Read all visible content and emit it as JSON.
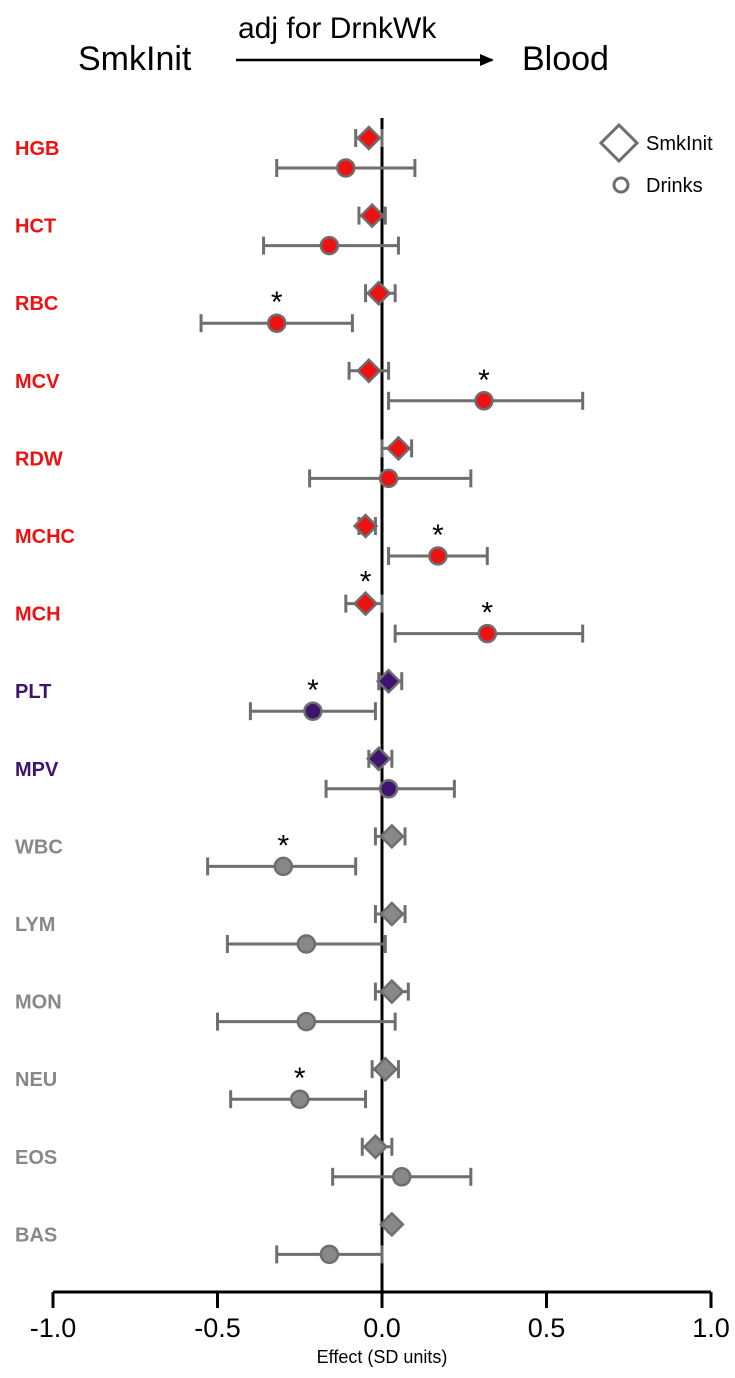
{
  "header": {
    "left_label": "SmkInit",
    "arrow_label": "adj for DrnkWk",
    "right_label": "Blood"
  },
  "legend": {
    "items": [
      {
        "name": "SmkInit",
        "marker": "diamond"
      },
      {
        "name": "Drinks",
        "marker": "circle"
      }
    ],
    "placement": "top-right"
  },
  "colors": {
    "red_group": "#ee1111",
    "purple_group": "#3d1470",
    "gray_group": "#888888",
    "outline": "#6e6e6e",
    "zero_line": "#000000"
  },
  "chart_data": {
    "type": "scatter",
    "subtype": "forest-plot",
    "xlabel": "Effect (SD units)",
    "xlim": [
      -1.0,
      1.0
    ],
    "xticks": [
      "-1.0",
      "-0.5",
      "0.0",
      "0.5",
      "1.0"
    ],
    "reference_line": 0.0,
    "grid": false,
    "series": [
      {
        "name": "SmkInit",
        "marker": "diamond"
      },
      {
        "name": "Drinks",
        "marker": "circle"
      }
    ],
    "rows": [
      {
        "label": "HGB",
        "group": "red_group",
        "smk": {
          "est": -0.04,
          "lo": -0.08,
          "hi": 0.0,
          "sig": false
        },
        "drk": {
          "est": -0.11,
          "lo": -0.32,
          "hi": 0.1,
          "sig": false
        }
      },
      {
        "label": "HCT",
        "group": "red_group",
        "smk": {
          "est": -0.03,
          "lo": -0.07,
          "hi": 0.01,
          "sig": false
        },
        "drk": {
          "est": -0.16,
          "lo": -0.36,
          "hi": 0.05,
          "sig": false
        }
      },
      {
        "label": "RBC",
        "group": "red_group",
        "smk": {
          "est": -0.01,
          "lo": -0.05,
          "hi": 0.04,
          "sig": false
        },
        "drk": {
          "est": -0.32,
          "lo": -0.55,
          "hi": -0.09,
          "sig": true
        }
      },
      {
        "label": "MCV",
        "group": "red_group",
        "smk": {
          "est": -0.04,
          "lo": -0.1,
          "hi": 0.02,
          "sig": false
        },
        "drk": {
          "est": 0.31,
          "lo": 0.02,
          "hi": 0.61,
          "sig": true
        }
      },
      {
        "label": "RDW",
        "group": "red_group",
        "smk": {
          "est": 0.05,
          "lo": 0.0,
          "hi": 0.09,
          "sig": false
        },
        "drk": {
          "est": 0.02,
          "lo": -0.22,
          "hi": 0.27,
          "sig": false
        }
      },
      {
        "label": "MCHC",
        "group": "red_group",
        "smk": {
          "est": -0.05,
          "lo": -0.07,
          "hi": -0.02,
          "sig": false
        },
        "drk": {
          "est": 0.17,
          "lo": 0.02,
          "hi": 0.32,
          "sig": true
        }
      },
      {
        "label": "MCH",
        "group": "red_group",
        "smk": {
          "est": -0.05,
          "lo": -0.11,
          "hi": 0.0,
          "sig": true
        },
        "drk": {
          "est": 0.32,
          "lo": 0.04,
          "hi": 0.61,
          "sig": true
        }
      },
      {
        "label": "PLT",
        "group": "purple_group",
        "smk": {
          "est": 0.02,
          "lo": -0.01,
          "hi": 0.06,
          "sig": false
        },
        "drk": {
          "est": -0.21,
          "lo": -0.4,
          "hi": -0.02,
          "sig": true
        }
      },
      {
        "label": "MPV",
        "group": "purple_group",
        "smk": {
          "est": -0.01,
          "lo": -0.04,
          "hi": 0.03,
          "sig": false
        },
        "drk": {
          "est": 0.02,
          "lo": -0.17,
          "hi": 0.22,
          "sig": false
        }
      },
      {
        "label": "WBC",
        "group": "gray_group",
        "smk": {
          "est": 0.03,
          "lo": -0.02,
          "hi": 0.07,
          "sig": false
        },
        "drk": {
          "est": -0.3,
          "lo": -0.53,
          "hi": -0.08,
          "sig": true
        }
      },
      {
        "label": "LYM",
        "group": "gray_group",
        "smk": {
          "est": 0.03,
          "lo": -0.02,
          "hi": 0.07,
          "sig": false
        },
        "drk": {
          "est": -0.23,
          "lo": -0.47,
          "hi": 0.01,
          "sig": false
        }
      },
      {
        "label": "MON",
        "group": "gray_group",
        "smk": {
          "est": 0.03,
          "lo": -0.02,
          "hi": 0.08,
          "sig": false
        },
        "drk": {
          "est": -0.23,
          "lo": -0.5,
          "hi": 0.04,
          "sig": false
        }
      },
      {
        "label": "NEU",
        "group": "gray_group",
        "smk": {
          "est": 0.01,
          "lo": -0.03,
          "hi": 0.05,
          "sig": false
        },
        "drk": {
          "est": -0.25,
          "lo": -0.46,
          "hi": -0.05,
          "sig": true
        }
      },
      {
        "label": "EOS",
        "group": "gray_group",
        "smk": {
          "est": -0.02,
          "lo": -0.06,
          "hi": 0.03,
          "sig": false
        },
        "drk": {
          "est": 0.06,
          "lo": -0.15,
          "hi": 0.27,
          "sig": false
        }
      },
      {
        "label": "BAS",
        "group": "gray_group",
        "smk": {
          "est": 0.03,
          "lo": 0.02,
          "hi": 0.03,
          "sig": false
        },
        "drk": {
          "est": -0.16,
          "lo": -0.32,
          "hi": 0.0,
          "sig": false
        }
      }
    ],
    "significance_marker": "*"
  }
}
